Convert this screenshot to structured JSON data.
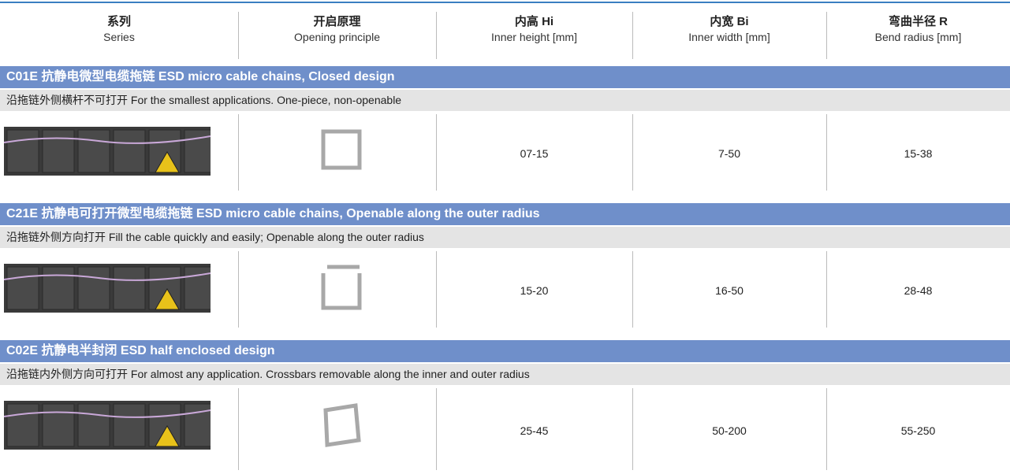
{
  "header": {
    "columns": [
      {
        "zh": "系列",
        "en": "Series"
      },
      {
        "zh": "开启原理",
        "en": "Opening principle"
      },
      {
        "zh": "内高 Hi",
        "en": "Inner height [mm]"
      },
      {
        "zh": "内宽 Bi",
        "en": "Inner width [mm]"
      },
      {
        "zh": "弯曲半径 R",
        "en": "Bend radius [mm]"
      }
    ]
  },
  "sections": [
    {
      "title": "C01E 抗静电微型电缆拖链 ESD micro cable chains, Closed design",
      "subtitle": "沿拖链外侧横杆不可打开 For the smallest applications. One-piece, non-openable",
      "hi": "07-15",
      "bi": "7-50",
      "r": "15-38"
    },
    {
      "title": "C21E 抗静电可打开微型电缆拖链 ESD micro cable chains, Openable along the outer radius",
      "subtitle": "沿拖链外侧方向打开 Fill the cable quickly and easily; Openable along the outer radius",
      "hi": "15-20",
      "bi": "16-50",
      "r": "28-48"
    },
    {
      "title": "C02E 抗静电半封闭 ESD half enclosed design",
      "subtitle": "沿拖链内外侧方向可打开 For almost any application. Crossbars removable along the inner and outer radius",
      "hi": "25-45",
      "bi": "50-200",
      "r": "55-250"
    }
  ]
}
